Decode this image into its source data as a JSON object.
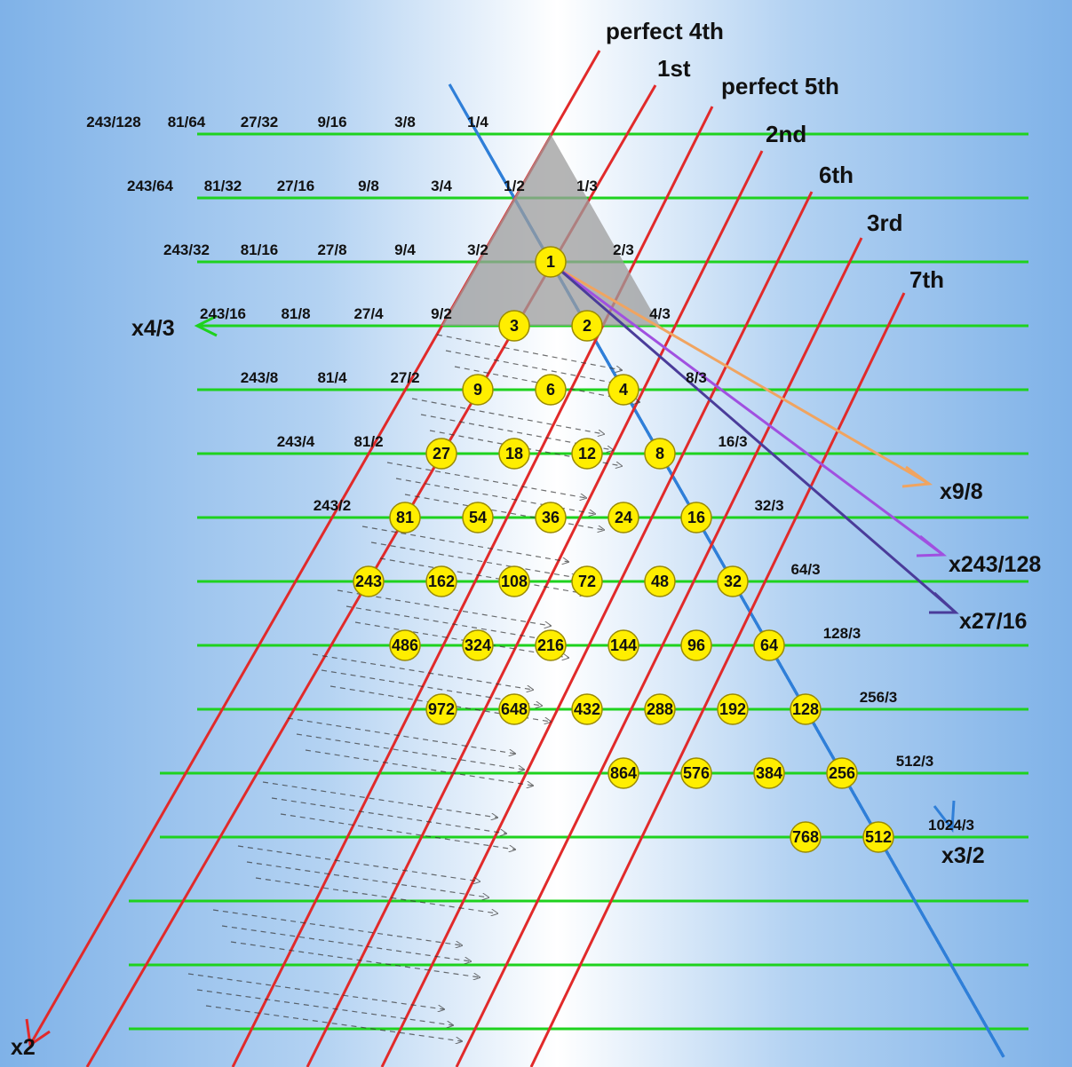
{
  "colors": {
    "horizontal_line": "#1ed21e",
    "octave_line": "#e12a2a",
    "fifth_line": "#2f7fd8",
    "node_fill": "#ffee00",
    "node_stroke": "#9a8a00",
    "triangle_fill": "#9c9c9c",
    "dashed_arrow": "#333333",
    "arrow_9_8": "#f0a460",
    "arrow_243_128": "#a050e0",
    "arrow_27_16": "#4a3c9a",
    "arrow_4_3": "#1ed21e",
    "arrow_3_2": "#2f7fd8",
    "arrow_2": "#e12a2a"
  },
  "interval_labels": [
    "perfect 4th",
    "1st",
    "perfect 5th",
    "2nd",
    "6th",
    "3rd",
    "7th"
  ],
  "multipliers": {
    "m_4_3": "x4/3",
    "m_9_8": "x9/8",
    "m_243_128": "x243/128",
    "m_27_16": "x27/16",
    "m_3_2": "x3/2",
    "m_2": "x2"
  },
  "nodes": [
    "1",
    "2",
    "4",
    "3",
    "8",
    "6",
    "16",
    "12",
    "9",
    "32",
    "24",
    "18",
    "64",
    "48",
    "36",
    "27",
    "128",
    "96",
    "72",
    "54",
    "256",
    "192",
    "144",
    "108",
    "81",
    "512",
    "384",
    "288",
    "216",
    "162",
    "768",
    "576",
    "432",
    "324",
    "243",
    "864",
    "648",
    "486",
    "972"
  ],
  "fractions": [
    "1/3",
    "1/4",
    "2/3",
    "1/2",
    "3/8",
    "4/3",
    "3/4",
    "9/16",
    "8/3",
    "3/2",
    "9/8",
    "27/32",
    "16/3",
    "9/4",
    "27/16",
    "81/64",
    "32/3",
    "9/2",
    "27/8",
    "81/32",
    "243/128",
    "64/3",
    "27/4",
    "81/16",
    "243/64",
    "128/3",
    "27/2",
    "81/8",
    "243/32",
    "256/3",
    "81/4",
    "243/16",
    "512/3",
    "81/2",
    "243/8",
    "1024/3",
    "243/4",
    "243/2"
  ]
}
